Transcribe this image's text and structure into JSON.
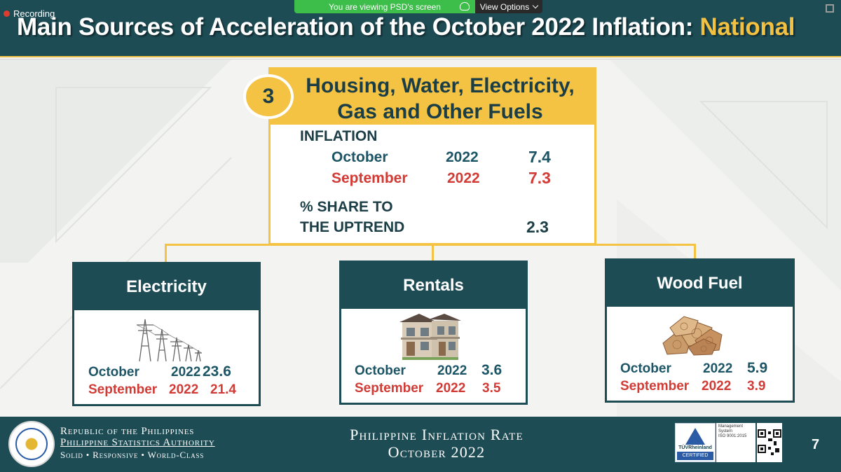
{
  "zoom": {
    "recording_label": "Recording",
    "sharing_notice": "You are viewing PSD's screen",
    "view_options_label": "View Options"
  },
  "slide": {
    "title_main": "Main Sources of Acceleration of the October 2022 Inflation: ",
    "title_accent": "National",
    "colors": {
      "header": "#1d4c55",
      "accent": "#f4c344",
      "red": "#d23b35",
      "teal": "#1c5565"
    }
  },
  "main_box": {
    "number": "3",
    "title_line1": "Housing, Water, Electricity,",
    "title_line2": "Gas and Other Fuels",
    "inflation_label": "INFLATION",
    "rows": [
      {
        "month": "October",
        "year": "2022",
        "value": "7.4"
      },
      {
        "month": "September",
        "year": "2022",
        "value": "7.3"
      }
    ],
    "share_label_line1": "% SHARE TO",
    "share_label_line2": "THE UPTREND",
    "share_value": "2.3"
  },
  "sub_boxes": [
    {
      "title": "Electricity",
      "icon": "power-transmission-towers-icon",
      "rows": [
        {
          "month": "October",
          "year": "2022",
          "value": "23.6"
        },
        {
          "month": "September",
          "year": "2022",
          "value": "21.4"
        }
      ]
    },
    {
      "title": "Rentals",
      "icon": "house-icon",
      "rows": [
        {
          "month": "October",
          "year": "2022",
          "value": "3.6"
        },
        {
          "month": "September",
          "year": "2022",
          "value": "3.5"
        }
      ]
    },
    {
      "title": "Wood Fuel",
      "icon": "firewood-icon",
      "rows": [
        {
          "month": "October",
          "year": "2022",
          "value": "5.9"
        },
        {
          "month": "September",
          "year": "2022",
          "value": "3.9"
        }
      ]
    }
  ],
  "footer": {
    "org_line1": "Republic of the Philippines",
    "org_line2": "Philippine Statistics Authority",
    "org_line3": "Solid • Responsive • World-Class",
    "center_line1": "Philippine Inflation Rate",
    "center_line2": "October 2022",
    "cert_brand": "TÜVRheinland",
    "cert_label": "CERTIFIED",
    "mgmt_line1": "Management",
    "mgmt_line2": "System",
    "mgmt_line3": "ISO 9001:2015",
    "page_number": "7"
  }
}
